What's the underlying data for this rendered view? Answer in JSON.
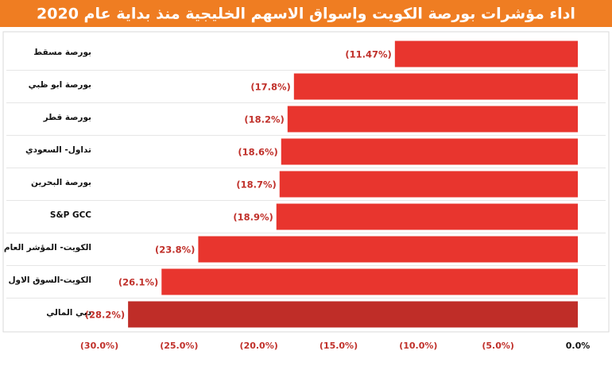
{
  "chart_data": {
    "type": "hbar",
    "title": "اداء مؤشرات بورصة الكويت واسواق الاسهم الخليجية منذ بداية عام 2020",
    "categories": [
      "بورصة مسقط",
      "بورصة ابو ظبي",
      "بورصة قطر",
      "تداول- السعودي",
      "بورصة البحرين",
      "S&P GCC",
      "الكويت- المؤشر العام",
      "الكويت-السوق الاول",
      "دبي المالي"
    ],
    "values": [
      -11.47,
      -17.8,
      -18.2,
      -18.6,
      -18.7,
      -18.9,
      -23.8,
      -26.1,
      -28.2
    ],
    "value_labels": [
      "(11.47%)",
      "(17.8%)",
      "(18.2%)",
      "(18.6%)",
      "(18.7%)",
      "(18.9%)",
      "(23.8%)",
      "(26.1%)",
      "(28.2%)"
    ],
    "colors": [
      "#e8352e",
      "#e8352e",
      "#e8352e",
      "#e8352e",
      "#e8352e",
      "#e8352e",
      "#e8352e",
      "#e8352e",
      "#bf2d28"
    ],
    "xlim": [
      -30,
      0
    ],
    "xticks": [
      {
        "value": -30,
        "label": "(30.0%)"
      },
      {
        "value": -25,
        "label": "(25.0%)"
      },
      {
        "value": -20,
        "label": "(20.0%)"
      },
      {
        "value": -15,
        "label": "(15.0%)"
      },
      {
        "value": -10,
        "label": "(10.0%)"
      },
      {
        "value": -5,
        "label": "(5.0%)"
      },
      {
        "value": 0,
        "label": "0.0%"
      }
    ]
  }
}
